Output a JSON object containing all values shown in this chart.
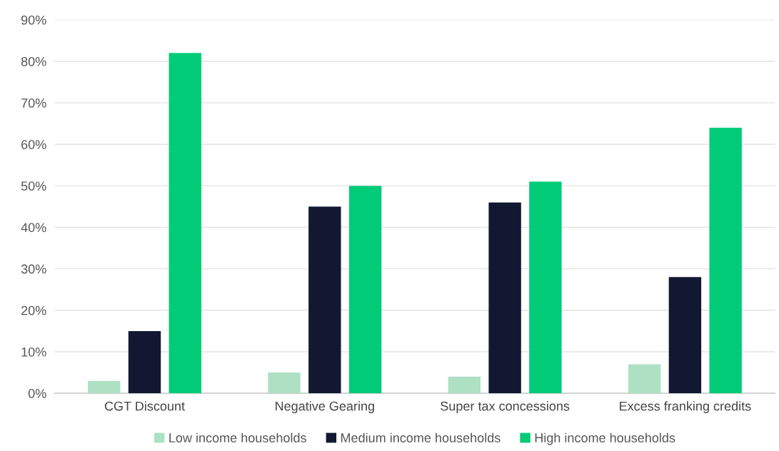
{
  "chart_data": {
    "type": "bar",
    "categories": [
      "CGT Discount",
      "Negative Gearing",
      "Super tax concessions",
      "Excess franking credits"
    ],
    "series": [
      {
        "name": "Low income households",
        "color": "#aee0c4",
        "values": [
          3,
          5,
          4,
          7
        ]
      },
      {
        "name": "Medium income households",
        "color": "#131832",
        "values": [
          15,
          45,
          46,
          28
        ]
      },
      {
        "name": "High income households",
        "color": "#00cc78",
        "values": [
          82,
          50,
          51,
          64
        ]
      }
    ],
    "ylim": [
      0,
      90
    ],
    "yticks": [
      {
        "value": 0,
        "label": "0%"
      },
      {
        "value": 10,
        "label": "10%"
      },
      {
        "value": 20,
        "label": "20%"
      },
      {
        "value": 30,
        "label": "30%"
      },
      {
        "value": 40,
        "label": "40%"
      },
      {
        "value": 50,
        "label": "50%"
      },
      {
        "value": 60,
        "label": "60%"
      },
      {
        "value": 70,
        "label": "70%"
      },
      {
        "value": 80,
        "label": "80%"
      },
      {
        "value": 90,
        "label": "90%"
      }
    ],
    "grid": "y",
    "legend": "bottom"
  }
}
